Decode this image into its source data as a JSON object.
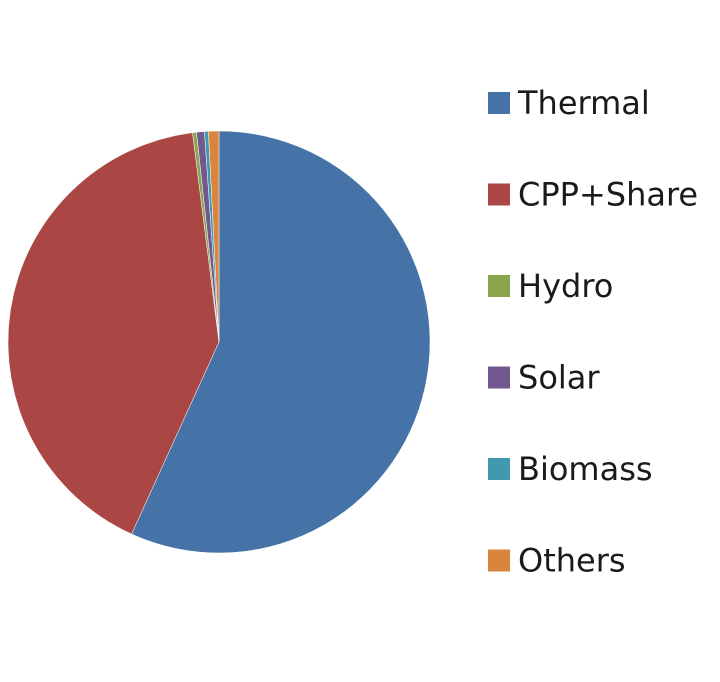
{
  "chart_data": {
    "type": "pie",
    "title": "",
    "categories": [
      "Thermal",
      "CPP+Share",
      "Hydro",
      "Solar",
      "Biomass",
      "Others"
    ],
    "values": [
      56.8,
      41.2,
      0.3,
      0.6,
      0.3,
      0.8
    ],
    "colors": [
      "#4572a7",
      "#aa4643",
      "#89a54e",
      "#71588f",
      "#4198af",
      "#db843d"
    ],
    "legend_position": "right",
    "start_angle_deg": 0,
    "direction": "clockwise"
  }
}
